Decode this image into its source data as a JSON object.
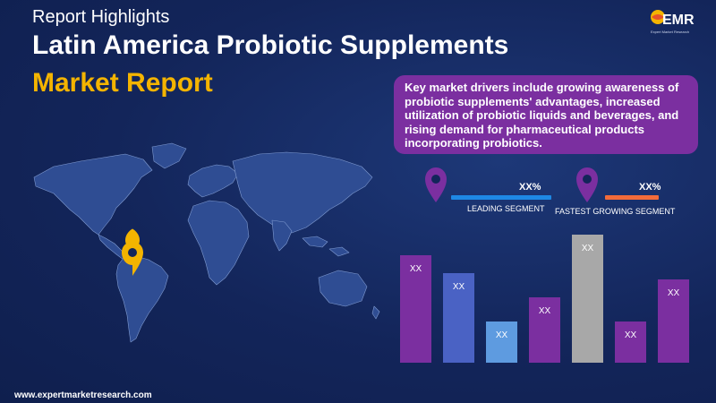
{
  "header": {
    "kicker": "Report Highlights",
    "title_line1": "Latin America Probiotic Supplements",
    "title_line2": "Market Report"
  },
  "logo": {
    "name": "EMR",
    "tagline": "Expert Market Research"
  },
  "callout": {
    "text": "Key market drivers include growing awareness of probiotic supplements' advantages, increased utilization of probiotic liquids and beverages, and rising demand for pharmaceutical products incorporating probiotics."
  },
  "segments": {
    "leading": {
      "value": "XX%",
      "label": "LEADING SEGMENT",
      "icon": "location-pin-icon"
    },
    "fastest": {
      "value": "XX%",
      "label": "FASTEST GROWING SEGMENT",
      "icon": "location-pin-icon"
    }
  },
  "bars": [
    {
      "label": "XX",
      "level": 0.84,
      "color": "#7b2fa0"
    },
    {
      "label": "XX",
      "level": 0.7,
      "color": "#4a62c4"
    },
    {
      "label": "XX",
      "level": 0.32,
      "color": "#5e9be0"
    },
    {
      "label": "XX",
      "level": 0.51,
      "color": "#7b2fa0"
    },
    {
      "label": "XX",
      "level": 1.0,
      "color": "#a8a8a8"
    },
    {
      "label": "XX",
      "level": 0.32,
      "color": "#7b2fa0"
    },
    {
      "label": "XX",
      "level": 0.65,
      "color": "#7b2fa0"
    }
  ],
  "colors": {
    "background": "#13255a",
    "accent_yellow": "#f4b400",
    "accent_purple": "#7b2fa0",
    "leading_line": "#1e88e5",
    "fastest_line": "#f26b3a"
  },
  "footer": {
    "url": "www.expertmarketresearch.com"
  }
}
